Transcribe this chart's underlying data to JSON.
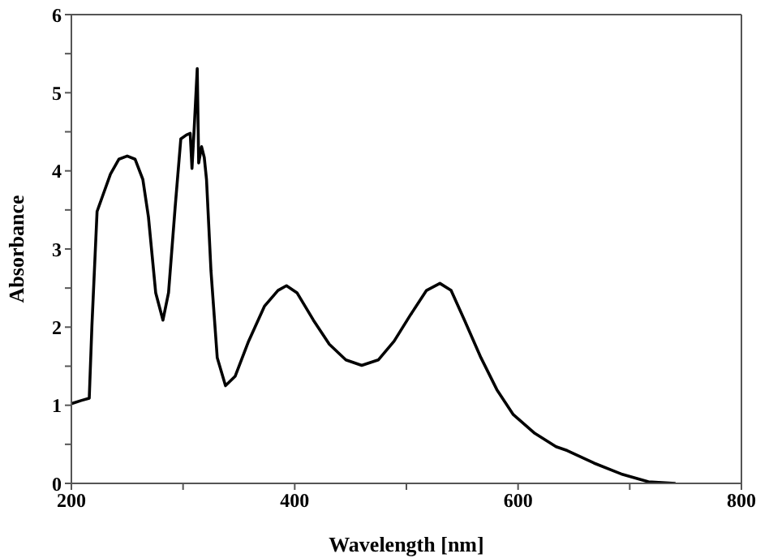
{
  "chart_data": {
    "type": "line",
    "xlabel": "Wavelength [nm]",
    "ylabel": "Absorbance",
    "x": [
      200,
      208.7,
      216,
      218.4,
      223,
      228,
      235,
      242.6,
      250,
      257,
      264,
      269,
      275.5,
      282,
      287,
      293,
      298,
      303,
      306.4,
      308,
      310,
      312.7,
      314,
      316.6,
      319,
      321,
      325,
      330.6,
      338,
      346.6,
      358.7,
      373,
      385,
      392.6,
      402,
      416.7,
      431,
      445.8,
      460,
      474.8,
      489,
      503.8,
      518,
      530,
      540,
      552,
      566.7,
      581,
      595.7,
      615,
      634,
      644,
      668,
      692.5,
      716.7,
      741
    ],
    "series": [
      {
        "color": "#000000",
        "values": [
          1.02,
          1.06,
          1.09,
          2.02,
          3.48,
          3.68,
          3.96,
          4.15,
          4.19,
          4.15,
          3.89,
          3.41,
          2.44,
          2.09,
          2.44,
          3.55,
          4.41,
          4.46,
          4.48,
          4.03,
          4.55,
          5.31,
          4.1,
          4.31,
          4.17,
          3.89,
          2.72,
          1.61,
          1.25,
          1.37,
          1.82,
          2.27,
          2.47,
          2.53,
          2.44,
          2.09,
          1.78,
          1.58,
          1.51,
          1.58,
          1.82,
          2.16,
          2.47,
          2.56,
          2.47,
          2.09,
          1.61,
          1.2,
          0.88,
          0.64,
          0.47,
          0.42,
          0.26,
          0.12,
          0.02,
          0
        ]
      }
    ],
    "xlim": [
      200,
      800
    ],
    "xticks": [
      200,
      {
        "value": 300,
        "label": null
      },
      400,
      {
        "value": 500,
        "label": null
      },
      600,
      {
        "value": 700,
        "label": null
      },
      800
    ],
    "ylim": [
      0,
      6
    ],
    "yticks": [
      0,
      {
        "value": 0.5,
        "label": null
      },
      1,
      {
        "value": 1.5,
        "label": null
      },
      2,
      {
        "value": 2.5,
        "label": null
      },
      3,
      {
        "value": 3.5,
        "label": null
      },
      4,
      {
        "value": 4.5,
        "label": null
      },
      5,
      {
        "value": 5.5,
        "label": null
      },
      6
    ],
    "grid": false,
    "legend": false,
    "marker": "none",
    "line_style": "solid"
  }
}
